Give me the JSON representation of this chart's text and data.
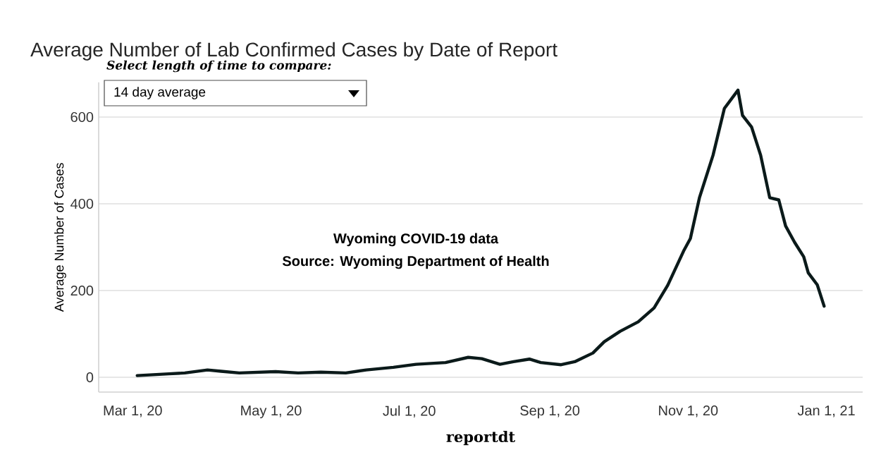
{
  "chart_data": {
    "type": "line",
    "title": "Average Number of Lab Confirmed Cases by Date of Report",
    "xlabel": "reportdt",
    "ylabel": "Average Number of Cases",
    "x": [
      "2020-03-03",
      "2020-03-17",
      "2020-03-24",
      "2020-04-03",
      "2020-04-09",
      "2020-04-17",
      "2020-05-03",
      "2020-05-13",
      "2020-05-23",
      "2020-06-03",
      "2020-06-12",
      "2020-06-24",
      "2020-07-04",
      "2020-07-17",
      "2020-07-27",
      "2020-08-02",
      "2020-08-10",
      "2020-08-16",
      "2020-08-23",
      "2020-08-28",
      "2020-09-06",
      "2020-09-12",
      "2020-09-20",
      "2020-09-25",
      "2020-10-02",
      "2020-10-10",
      "2020-10-17",
      "2020-10-23",
      "2020-10-30",
      "2020-11-02",
      "2020-11-06",
      "2020-11-12",
      "2020-11-17",
      "2020-11-23",
      "2020-11-25",
      "2020-11-29",
      "2020-12-03",
      "2020-12-07",
      "2020-12-11",
      "2020-12-14",
      "2020-12-18",
      "2020-12-22",
      "2020-12-24",
      "2020-12-28",
      "2020-12-31"
    ],
    "series": [
      {
        "color": "#0b1a1a",
        "values": [
          4,
          8,
          10,
          17,
          14,
          10,
          13,
          10,
          12,
          10,
          17,
          23,
          30,
          34,
          46,
          43,
          30,
          36,
          42,
          34,
          29,
          36,
          56,
          82,
          106,
          128,
          160,
          212,
          291,
          320,
          414,
          512,
          620,
          662,
          604,
          577,
          512,
          414,
          409,
          349,
          311,
          278,
          241,
          213,
          164
        ]
      }
    ],
    "xlim": [
      "2020-02-15",
      "2021-01-17"
    ],
    "xticks": [
      {
        "value": "2020-03-01",
        "label": "Mar 1, 20"
      },
      {
        "value": "2020-05-01",
        "label": "May 1, 20"
      },
      {
        "value": "2020-07-01",
        "label": "Jul 1, 20"
      },
      {
        "value": "2020-09-01",
        "label": "Sep 1, 20"
      },
      {
        "value": "2020-11-01",
        "label": "Nov 1, 20"
      },
      {
        "value": "2021-01-01",
        "label": "Jan 1, 21"
      }
    ],
    "ylim": [
      -34,
      680
    ],
    "yticks": [
      0,
      200,
      400,
      600
    ],
    "grid": "y",
    "line_style": "solid",
    "marker": "none",
    "annotations": [
      "Select length of time to compare:",
      "14 day average",
      "Wyoming COVID-19 data",
      "Source: Wyoming Department of Health"
    ]
  }
}
